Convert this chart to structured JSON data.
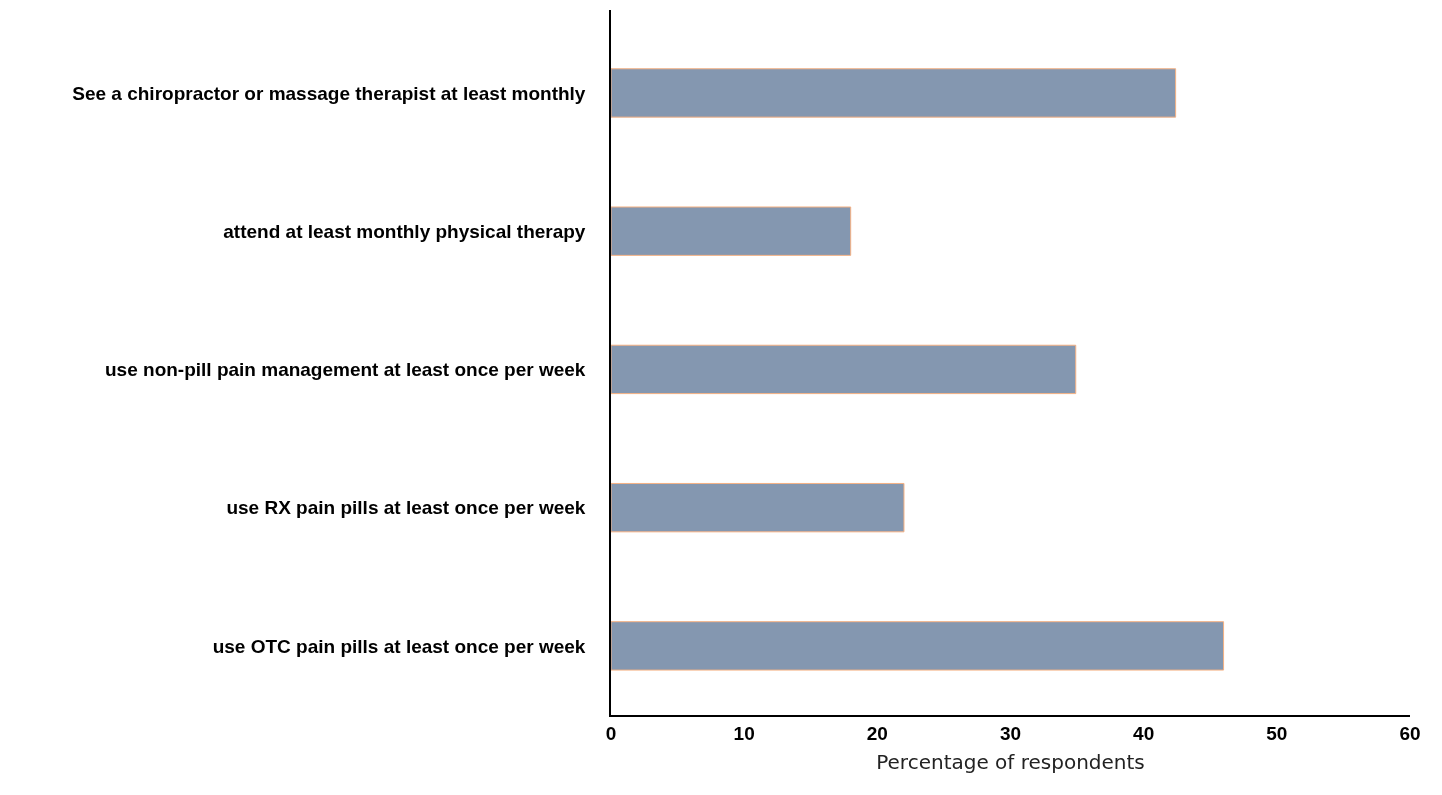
{
  "chart_data": {
    "type": "bar",
    "orientation": "horizontal",
    "xlabel": "Percentage of respondents",
    "categories": [
      "See a chiropractor or massage therapist at least monthly",
      "attend at least monthly physical therapy",
      "use non-pill pain management at least once per week",
      "use RX pain pills at least once per week",
      "use OTC pain pills at least once per week"
    ],
    "values": [
      42.4,
      18.0,
      34.9,
      22.0,
      46.0
    ],
    "color": "#8497b0",
    "xlim": [
      0,
      60
    ],
    "xticks": [
      0,
      10,
      20,
      30,
      40,
      50,
      60
    ],
    "grid": false
  }
}
